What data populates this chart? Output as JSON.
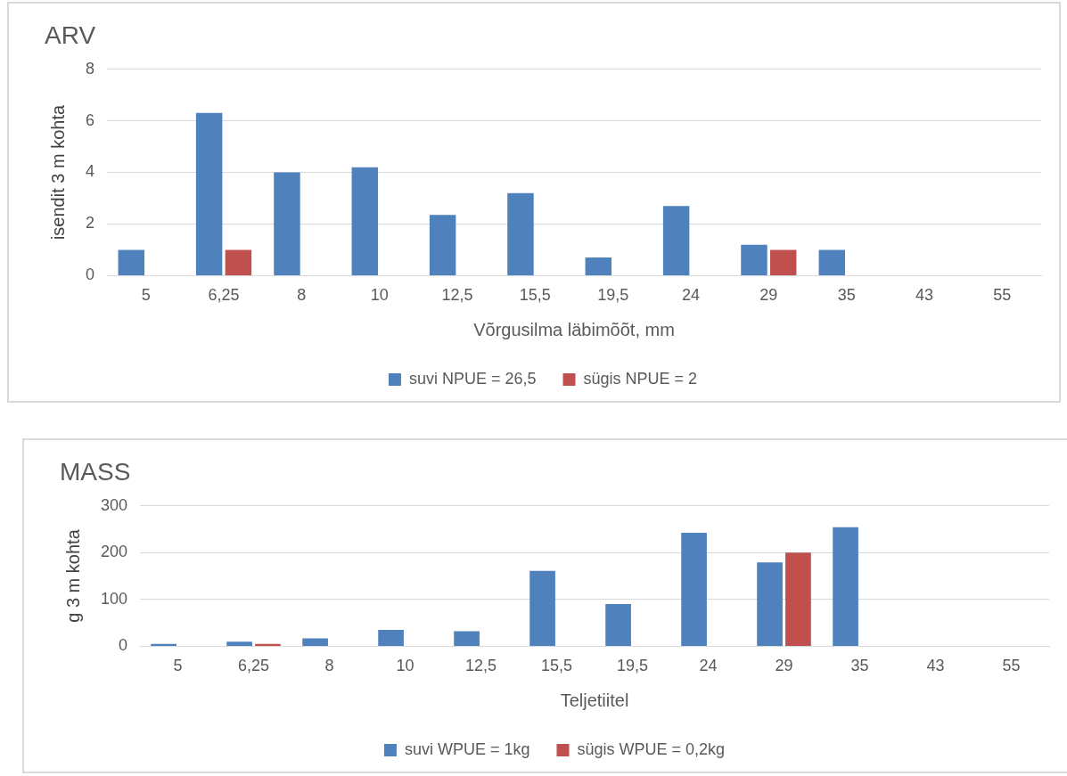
{
  "chart_data": [
    {
      "type": "bar",
      "title": "ARV",
      "xlabel": "Võrgusilma läbimõõt, mm",
      "ylabel": "isendit 3 m kohta",
      "categories": [
        "5",
        "6,25",
        "8",
        "10",
        "12,5",
        "15,5",
        "19,5",
        "24",
        "29",
        "35",
        "43",
        "55"
      ],
      "series": [
        {
          "name": "suvi NPUE = 26,5",
          "color": "#4f81bd",
          "values": [
            1,
            6.3,
            4,
            4.2,
            2.35,
            3.2,
            0.7,
            2.7,
            1.2,
            1,
            0,
            0
          ]
        },
        {
          "name": "sügis NPUE = 2",
          "color": "#c0504d",
          "values": [
            0,
            1,
            0,
            0,
            0,
            0,
            0,
            0,
            1,
            0,
            0,
            0
          ]
        }
      ],
      "ylim": [
        0,
        8
      ],
      "yticks": [
        0,
        2,
        4,
        6,
        8
      ],
      "grid": "y",
      "legend": "bottom"
    },
    {
      "type": "bar",
      "title": "MASS",
      "xlabel": "Teljetiitel",
      "ylabel": "g 3 m kohta",
      "categories": [
        "5",
        "6,25",
        "8",
        "10",
        "12,5",
        "15,5",
        "19,5",
        "24",
        "29",
        "35",
        "43",
        "55"
      ],
      "series": [
        {
          "name": "suvi WPUE = 1kg",
          "color": "#4f81bd",
          "values": [
            5,
            10,
            17,
            35,
            32,
            161,
            90,
            242,
            179,
            254,
            0,
            0
          ]
        },
        {
          "name": "sügis WPUE = 0,2kg",
          "color": "#c0504d",
          "values": [
            0,
            5,
            0,
            0,
            0,
            0,
            0,
            0,
            200,
            0,
            0,
            0
          ]
        }
      ],
      "ylim": [
        0,
        300
      ],
      "yticks": [
        0,
        100,
        200,
        300
      ],
      "grid": "y",
      "legend": "bottom"
    }
  ]
}
